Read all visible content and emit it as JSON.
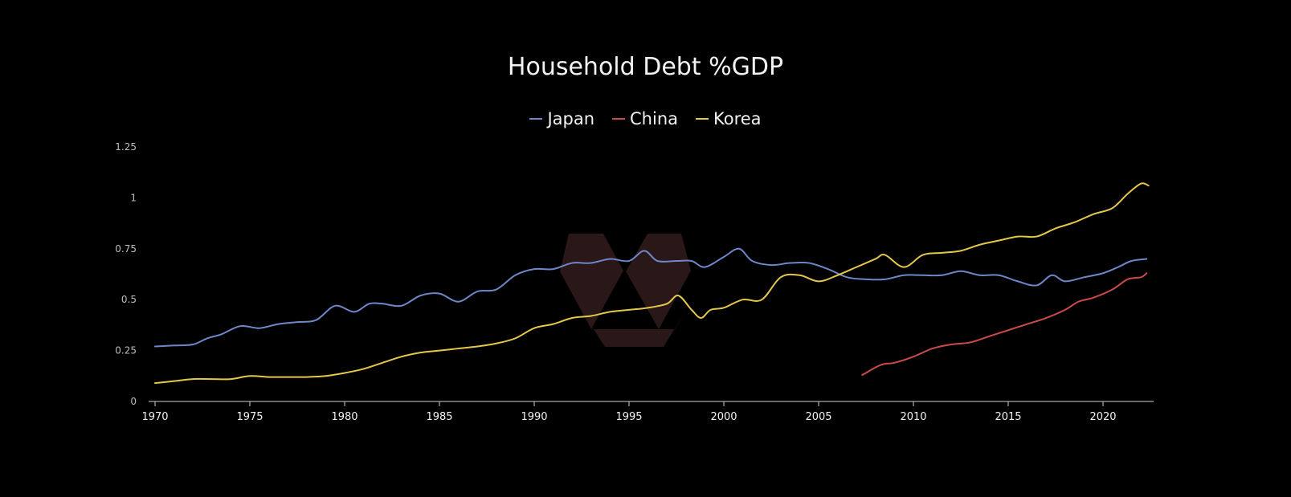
{
  "chart_data": {
    "type": "line",
    "title": "Household Debt %GDP",
    "xlabel": "",
    "ylabel": "",
    "xlim": [
      1970,
      2022.5
    ],
    "ylim": [
      0,
      1.25
    ],
    "x_ticks": [
      1970,
      1975,
      1980,
      1985,
      1990,
      1995,
      2000,
      2005,
      2010,
      2015,
      2020
    ],
    "y_ticks": [
      0,
      0.25,
      0.5,
      0.75,
      1,
      1.25
    ],
    "y_tick_labels": [
      "0",
      "0.25",
      "0.5",
      "0.75",
      "1",
      "1.25"
    ],
    "grid": false,
    "legend_position": "top-center",
    "series": [
      {
        "name": "Japan",
        "color": "#6f86c9",
        "points": [
          [
            1970,
            0.27
          ],
          [
            1971,
            0.275
          ],
          [
            1972,
            0.28
          ],
          [
            1972.75,
            0.31
          ],
          [
            1973.5,
            0.33
          ],
          [
            1974.5,
            0.37
          ],
          [
            1975.5,
            0.36
          ],
          [
            1976.5,
            0.38
          ],
          [
            1977.5,
            0.39
          ],
          [
            1978.5,
            0.4
          ],
          [
            1979.5,
            0.47
          ],
          [
            1980.5,
            0.44
          ],
          [
            1981.3,
            0.48
          ],
          [
            1982,
            0.48
          ],
          [
            1983,
            0.47
          ],
          [
            1984,
            0.52
          ],
          [
            1985,
            0.53
          ],
          [
            1986,
            0.49
          ],
          [
            1987,
            0.54
          ],
          [
            1988,
            0.55
          ],
          [
            1989,
            0.62
          ],
          [
            1990,
            0.65
          ],
          [
            1991,
            0.65
          ],
          [
            1992,
            0.68
          ],
          [
            1993,
            0.68
          ],
          [
            1994,
            0.7
          ],
          [
            1995,
            0.69
          ],
          [
            1995.8,
            0.74
          ],
          [
            1996.5,
            0.69
          ],
          [
            1997.5,
            0.69
          ],
          [
            1998.3,
            0.69
          ],
          [
            1999,
            0.66
          ],
          [
            2000,
            0.71
          ],
          [
            2000.8,
            0.75
          ],
          [
            2001.5,
            0.69
          ],
          [
            2002.5,
            0.67
          ],
          [
            2003.5,
            0.68
          ],
          [
            2004.5,
            0.68
          ],
          [
            2005.5,
            0.65
          ],
          [
            2006.5,
            0.61
          ],
          [
            2007.5,
            0.6
          ],
          [
            2008.5,
            0.6
          ],
          [
            2009.5,
            0.62
          ],
          [
            2010.5,
            0.62
          ],
          [
            2011.5,
            0.62
          ],
          [
            2012.5,
            0.64
          ],
          [
            2013.5,
            0.62
          ],
          [
            2014.5,
            0.62
          ],
          [
            2015.5,
            0.59
          ],
          [
            2016.5,
            0.57
          ],
          [
            2017.3,
            0.62
          ],
          [
            2018,
            0.59
          ],
          [
            2019,
            0.61
          ],
          [
            2020,
            0.63
          ],
          [
            2020.8,
            0.66
          ],
          [
            2021.5,
            0.69
          ],
          [
            2022.3,
            0.7
          ]
        ]
      },
      {
        "name": "China",
        "color": "#c94b4b",
        "points": [
          [
            2007.3,
            0.13
          ],
          [
            2008.3,
            0.18
          ],
          [
            2009,
            0.19
          ],
          [
            2010,
            0.22
          ],
          [
            2011,
            0.26
          ],
          [
            2012,
            0.28
          ],
          [
            2013,
            0.29
          ],
          [
            2014,
            0.32
          ],
          [
            2015,
            0.35
          ],
          [
            2016,
            0.38
          ],
          [
            2017,
            0.41
          ],
          [
            2018,
            0.45
          ],
          [
            2018.7,
            0.49
          ],
          [
            2019.5,
            0.51
          ],
          [
            2020.5,
            0.55
          ],
          [
            2021.3,
            0.6
          ],
          [
            2022,
            0.61
          ],
          [
            2022.3,
            0.63
          ]
        ]
      },
      {
        "name": "Korea",
        "color": "#e5c84a",
        "points": [
          [
            1970,
            0.09
          ],
          [
            1971,
            0.1
          ],
          [
            1972,
            0.11
          ],
          [
            1973,
            0.11
          ],
          [
            1974,
            0.11
          ],
          [
            1975,
            0.125
          ],
          [
            1976,
            0.12
          ],
          [
            1977,
            0.12
          ],
          [
            1978,
            0.12
          ],
          [
            1979,
            0.125
          ],
          [
            1980,
            0.14
          ],
          [
            1981,
            0.16
          ],
          [
            1982,
            0.19
          ],
          [
            1983,
            0.22
          ],
          [
            1984,
            0.24
          ],
          [
            1985,
            0.25
          ],
          [
            1986,
            0.26
          ],
          [
            1987,
            0.27
          ],
          [
            1988,
            0.285
          ],
          [
            1989,
            0.31
          ],
          [
            1990,
            0.36
          ],
          [
            1991,
            0.38
          ],
          [
            1992,
            0.41
          ],
          [
            1993,
            0.42
          ],
          [
            1994,
            0.44
          ],
          [
            1995,
            0.45
          ],
          [
            1996,
            0.46
          ],
          [
            1997,
            0.48
          ],
          [
            1997.6,
            0.52
          ],
          [
            1998.3,
            0.45
          ],
          [
            1998.8,
            0.41
          ],
          [
            1999.3,
            0.45
          ],
          [
            2000,
            0.46
          ],
          [
            2001,
            0.5
          ],
          [
            2002,
            0.5
          ],
          [
            2003,
            0.61
          ],
          [
            2004,
            0.62
          ],
          [
            2005,
            0.59
          ],
          [
            2006,
            0.62
          ],
          [
            2007,
            0.66
          ],
          [
            2008,
            0.7
          ],
          [
            2008.5,
            0.72
          ],
          [
            2009.5,
            0.66
          ],
          [
            2010.5,
            0.72
          ],
          [
            2011.5,
            0.73
          ],
          [
            2012.5,
            0.74
          ],
          [
            2013.5,
            0.77
          ],
          [
            2014.5,
            0.79
          ],
          [
            2015.5,
            0.81
          ],
          [
            2016.5,
            0.81
          ],
          [
            2017.5,
            0.85
          ],
          [
            2018.5,
            0.88
          ],
          [
            2019.5,
            0.92
          ],
          [
            2020.5,
            0.95
          ],
          [
            2021.3,
            1.02
          ],
          [
            2022,
            1.07
          ],
          [
            2022.4,
            1.06
          ]
        ]
      }
    ]
  }
}
